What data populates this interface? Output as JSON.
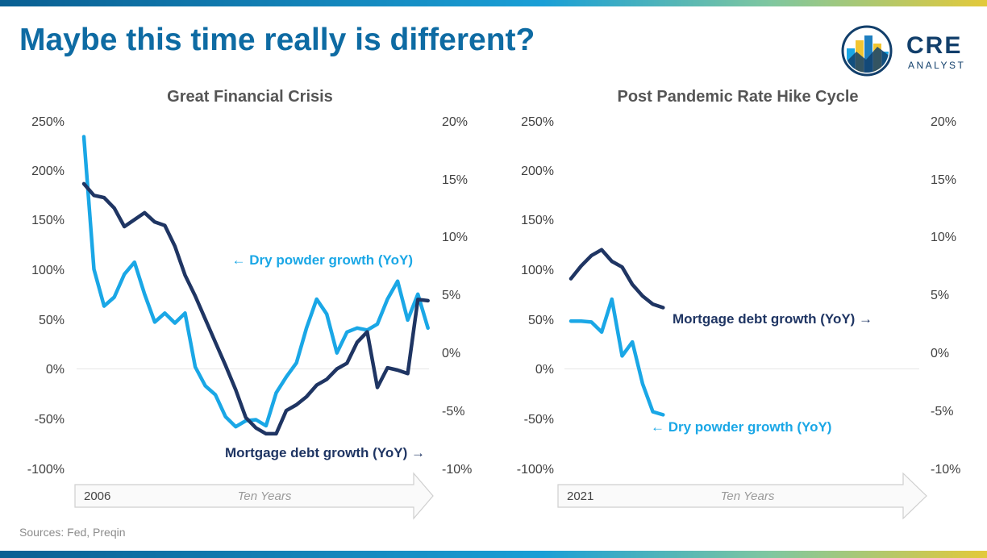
{
  "title": "Maybe this time really is different?",
  "logo": {
    "line1": "CRE",
    "line2": "ANALYST"
  },
  "sources": "Sources: Fed, Preqin",
  "colors": {
    "dry_powder": "#1aa7e6",
    "mortgage": "#1f3563",
    "title": "#0e6ba3"
  },
  "chart_data": [
    {
      "type": "line",
      "title": "Great Financial Crisis",
      "left_axis": {
        "ticks": [
          "250%",
          "200%",
          "150%",
          "100%",
          "50%",
          "0%",
          "-50%",
          "-100%"
        ],
        "range": [
          -100,
          250
        ]
      },
      "right_axis": {
        "ticks": [
          "20%",
          "15%",
          "10%",
          "5%",
          "0%",
          "-5%",
          "-10%"
        ],
        "range": [
          -10,
          20
        ]
      },
      "timeline": {
        "start_label": "2006",
        "span_label": "Ten Years"
      },
      "series": [
        {
          "name": "Dry powder growth (YoY)",
          "label": "← Dry powder growth (YoY)",
          "axis": "left",
          "values": [
            233,
            100,
            63,
            72,
            95,
            107,
            75,
            47,
            56,
            46,
            56,
            2,
            -17,
            -26,
            -48,
            -58,
            -52,
            -51,
            -57,
            -24,
            -8,
            6,
            41,
            70,
            55,
            16,
            37,
            41,
            39,
            45,
            70,
            88,
            49,
            75,
            41
          ]
        },
        {
          "name": "Mortgage debt growth (YoY)",
          "label": "Mortgage debt growth (YoY) →",
          "axis": "right",
          "values": [
            14.5,
            13.5,
            13.3,
            12.4,
            10.8,
            11.4,
            12,
            11.2,
            10.9,
            9.1,
            6.6,
            4.8,
            2.8,
            0.8,
            -1.2,
            -3.3,
            -5.7,
            -6.6,
            -7.1,
            -7.1,
            -5.1,
            -4.6,
            -3.9,
            -2.9,
            -2.4,
            -1.5,
            -1,
            0.8,
            1.7,
            -3.1,
            -1.4,
            -1.6,
            -1.9,
            4.5,
            4.4
          ]
        }
      ]
    },
    {
      "type": "line",
      "title": "Post Pandemic Rate Hike Cycle",
      "left_axis": {
        "ticks": [
          "250%",
          "200%",
          "150%",
          "100%",
          "50%",
          "0%",
          "-50%",
          "-100%"
        ],
        "range": [
          -100,
          250
        ]
      },
      "right_axis": {
        "ticks": [
          "20%",
          "15%",
          "10%",
          "5%",
          "0%",
          "-5%",
          "-10%"
        ],
        "range": [
          -10,
          20
        ]
      },
      "timeline": {
        "start_label": "2021",
        "span_label": "Ten Years"
      },
      "series": [
        {
          "name": "Mortgage debt growth (YoY)",
          "label": "Mortgage debt growth (YoY) →",
          "axis": "right",
          "values": [
            6.3,
            7.4,
            8.3,
            8.8,
            7.8,
            7.3,
            5.8,
            4.8,
            4.1,
            3.8
          ]
        },
        {
          "name": "Dry powder growth (YoY)",
          "label": "← Dry powder growth (YoY)",
          "axis": "left",
          "values": [
            48,
            48,
            47,
            37,
            70,
            13,
            27,
            -15,
            -43,
            -46
          ]
        }
      ]
    }
  ]
}
